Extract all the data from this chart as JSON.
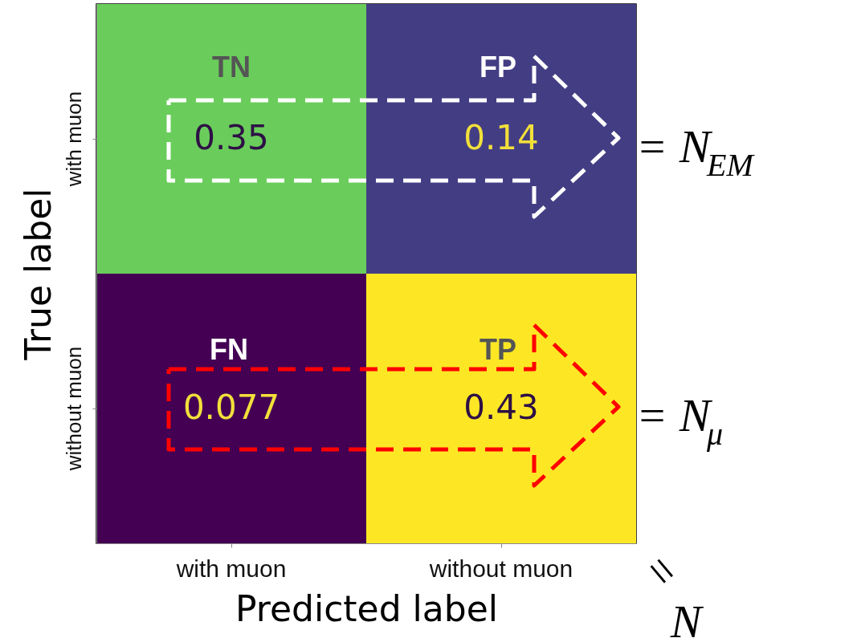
{
  "chart_data": {
    "type": "heatmap",
    "xlabel": "Predicted label",
    "ylabel": "True label",
    "categories": [
      "with muon",
      "without muon"
    ],
    "y_categories": [
      "with muon",
      "without muon"
    ],
    "cells": [
      [
        0.35,
        0.14
      ],
      [
        0.077,
        0.43
      ]
    ],
    "data_labels": true,
    "annotations": [
      "TN",
      "FP",
      "FN",
      "TP",
      "= N$_{EM}$",
      "= N$_{μ}$",
      "= N"
    ]
  }
}
